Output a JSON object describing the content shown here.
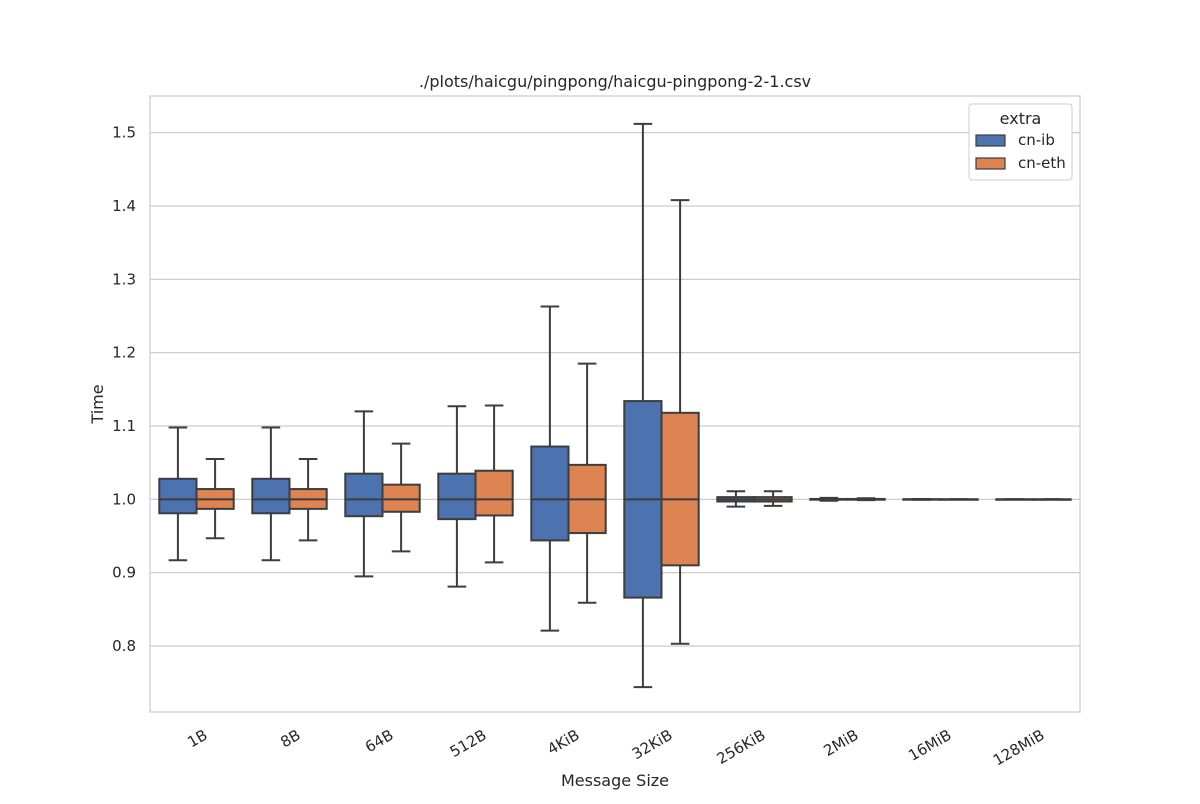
{
  "chart_data": {
    "type": "box",
    "title": "./plots/haicgu/pingpong/haicgu-pingpong-2-1.csv",
    "xlabel": "Message Size",
    "ylabel": "Time",
    "ylim": [
      0.71,
      1.55
    ],
    "yticks": [
      0.8,
      0.9,
      1.0,
      1.1,
      1.2,
      1.3,
      1.4,
      1.5
    ],
    "ytick_labels": [
      "0.8",
      "0.9",
      "1.0",
      "1.1",
      "1.2",
      "1.3",
      "1.4",
      "1.5"
    ],
    "grid": true,
    "categories": [
      "1B",
      "8B",
      "64B",
      "512B",
      "4KiB",
      "32KiB",
      "256KiB",
      "2MiB",
      "16MiB",
      "128MiB"
    ],
    "legend": {
      "title": "extra",
      "position": "top-right"
    },
    "series": [
      {
        "name": "cn-ib",
        "color": "#4c72b0",
        "boxes": [
          {
            "whislo": 0.917,
            "q1": 0.981,
            "med": 1.0,
            "q3": 1.028,
            "whishi": 1.098
          },
          {
            "whislo": 0.917,
            "q1": 0.981,
            "med": 1.0,
            "q3": 1.028,
            "whishi": 1.098
          },
          {
            "whislo": 0.895,
            "q1": 0.977,
            "med": 1.0,
            "q3": 1.035,
            "whishi": 1.12
          },
          {
            "whislo": 0.881,
            "q1": 0.973,
            "med": 1.0,
            "q3": 1.035,
            "whishi": 1.127
          },
          {
            "whislo": 0.821,
            "q1": 0.944,
            "med": 1.0,
            "q3": 1.072,
            "whishi": 1.263
          },
          {
            "whislo": 0.744,
            "q1": 0.866,
            "med": 1.0,
            "q3": 1.134,
            "whishi": 1.512
          },
          {
            "whislo": 0.99,
            "q1": 0.997,
            "med": 1.0,
            "q3": 1.003,
            "whishi": 1.011
          },
          {
            "whislo": 0.998,
            "q1": 0.9995,
            "med": 1.0,
            "q3": 1.0005,
            "whishi": 1.002
          },
          {
            "whislo": 0.9995,
            "q1": 0.9998,
            "med": 1.0,
            "q3": 1.0002,
            "whishi": 1.0005
          },
          {
            "whislo": 0.9998,
            "q1": 0.9999,
            "med": 1.0,
            "q3": 1.0001,
            "whishi": 1.0002
          }
        ]
      },
      {
        "name": "cn-eth",
        "color": "#dd8452",
        "boxes": [
          {
            "whislo": 0.947,
            "q1": 0.987,
            "med": 1.0,
            "q3": 1.014,
            "whishi": 1.055
          },
          {
            "whislo": 0.944,
            "q1": 0.987,
            "med": 1.0,
            "q3": 1.014,
            "whishi": 1.055
          },
          {
            "whislo": 0.929,
            "q1": 0.983,
            "med": 1.0,
            "q3": 1.02,
            "whishi": 1.076
          },
          {
            "whislo": 0.914,
            "q1": 0.978,
            "med": 1.0,
            "q3": 1.039,
            "whishi": 1.128
          },
          {
            "whislo": 0.859,
            "q1": 0.954,
            "med": 1.0,
            "q3": 1.047,
            "whishi": 1.185
          },
          {
            "whislo": 0.803,
            "q1": 0.91,
            "med": 1.0,
            "q3": 1.118,
            "whishi": 1.408
          },
          {
            "whislo": 0.991,
            "q1": 0.997,
            "med": 1.0,
            "q3": 1.003,
            "whishi": 1.011
          },
          {
            "whislo": 0.999,
            "q1": 0.9995,
            "med": 1.0,
            "q3": 1.0005,
            "whishi": 1.0015
          },
          {
            "whislo": 0.9997,
            "q1": 0.9999,
            "med": 1.0,
            "q3": 1.0001,
            "whishi": 1.0003
          },
          {
            "whislo": 0.9999,
            "q1": 0.99995,
            "med": 1.0,
            "q3": 1.00005,
            "whishi": 1.0001
          }
        ]
      }
    ]
  }
}
